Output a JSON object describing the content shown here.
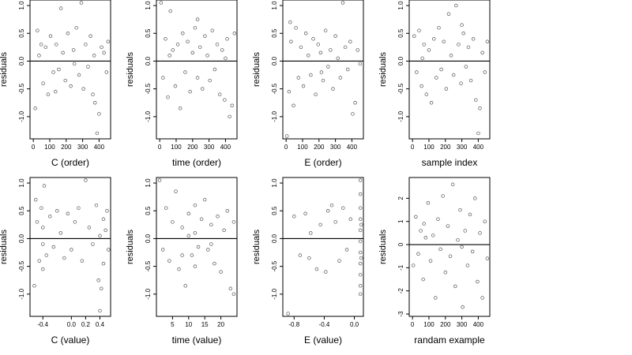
{
  "chart_data": [
    {
      "type": "scatter",
      "xlabel": "C (order)",
      "ylabel": "residuals",
      "xlim": [
        -20,
        470
      ],
      "ylim": [
        -1.4,
        1.1
      ],
      "xticks": [
        0,
        100,
        200,
        300,
        400
      ],
      "xticklabels": [
        "0",
        "100",
        "200",
        "300",
        "400"
      ],
      "yticks": [
        -1.0,
        -0.5,
        0.0,
        0.5,
        1.0
      ],
      "yticklabels": [
        "-1.0",
        "-0.5",
        "0.0",
        "0.5",
        "1.0"
      ],
      "hline": 0,
      "points": [
        [
          12,
          -0.85
        ],
        [
          25,
          0.55
        ],
        [
          48,
          0.3
        ],
        [
          60,
          -0.4
        ],
        [
          75,
          0.25
        ],
        [
          90,
          -0.6
        ],
        [
          105,
          0.45
        ],
        [
          122,
          -0.2
        ],
        [
          140,
          0.3
        ],
        [
          155,
          -0.15
        ],
        [
          168,
          0.95
        ],
        [
          180,
          0.15
        ],
        [
          195,
          -0.35
        ],
        [
          210,
          0.5
        ],
        [
          228,
          -0.45
        ],
        [
          245,
          0.2
        ],
        [
          262,
          0.6
        ],
        [
          278,
          -0.25
        ],
        [
          292,
          1.05
        ],
        [
          305,
          -0.5
        ],
        [
          318,
          0.3
        ],
        [
          333,
          -0.1
        ],
        [
          348,
          0.45
        ],
        [
          362,
          -0.6
        ],
        [
          375,
          -0.75
        ],
        [
          388,
          -1.3
        ],
        [
          400,
          -0.95
        ],
        [
          415,
          0.25
        ],
        [
          430,
          0.15
        ],
        [
          445,
          -0.2
        ],
        [
          455,
          0.35
        ],
        [
          35,
          0.1
        ],
        [
          135,
          -0.55
        ],
        [
          250,
          -0.05
        ],
        [
          370,
          0.1
        ]
      ]
    },
    {
      "type": "scatter",
      "xlabel": "time (order)",
      "ylabel": "residuals",
      "xlim": [
        -20,
        470
      ],
      "ylim": [
        -1.4,
        1.1
      ],
      "xticks": [
        0,
        100,
        200,
        300,
        400
      ],
      "xticklabels": [
        "0",
        "100",
        "200",
        "300",
        "400"
      ],
      "yticks": [
        -1.0,
        -0.5,
        0.0,
        0.5,
        1.0
      ],
      "yticklabels": [
        "-1.0",
        "-0.5",
        "0.0",
        "0.5",
        "1.0"
      ],
      "hline": 0,
      "points": [
        [
          8,
          1.05
        ],
        [
          20,
          -0.3
        ],
        [
          35,
          0.4
        ],
        [
          50,
          -0.65
        ],
        [
          65,
          0.9
        ],
        [
          80,
          0.2
        ],
        [
          95,
          -0.45
        ],
        [
          110,
          0.3
        ],
        [
          125,
          -0.85
        ],
        [
          140,
          0.5
        ],
        [
          155,
          -0.2
        ],
        [
          170,
          0.35
        ],
        [
          185,
          -0.55
        ],
        [
          200,
          0.15
        ],
        [
          215,
          0.6
        ],
        [
          230,
          -0.3
        ],
        [
          245,
          0.25
        ],
        [
          260,
          -0.5
        ],
        [
          275,
          0.45
        ],
        [
          290,
          0.1
        ],
        [
          305,
          -0.35
        ],
        [
          320,
          0.55
        ],
        [
          335,
          -0.15
        ],
        [
          350,
          0.3
        ],
        [
          365,
          -0.6
        ],
        [
          380,
          0.2
        ],
        [
          395,
          -0.7
        ],
        [
          410,
          0.4
        ],
        [
          425,
          -1.0
        ],
        [
          440,
          -0.8
        ],
        [
          455,
          0.5
        ],
        [
          60,
          0.1
        ],
        [
          230,
          0.75
        ],
        [
          400,
          0.05
        ]
      ]
    },
    {
      "type": "scatter",
      "xlabel": "E (order)",
      "ylabel": "residuals",
      "xlim": [
        -20,
        470
      ],
      "ylim": [
        -1.4,
        1.1
      ],
      "xticks": [
        0,
        100,
        200,
        300,
        400
      ],
      "xticklabels": [
        "0",
        "100",
        "200",
        "300",
        "400"
      ],
      "yticks": [
        -1.0,
        -0.5,
        0.0,
        0.5,
        1.0
      ],
      "yticklabels": [
        "-1.0",
        "-0.5",
        "0.0",
        "0.5",
        "1.0"
      ],
      "hline": 0,
      "points": [
        [
          5,
          -1.35
        ],
        [
          18,
          -0.55
        ],
        [
          30,
          0.35
        ],
        [
          45,
          -0.8
        ],
        [
          60,
          0.6
        ],
        [
          75,
          -0.3
        ],
        [
          90,
          0.25
        ],
        [
          105,
          -0.45
        ],
        [
          120,
          0.5
        ],
        [
          135,
          0.1
        ],
        [
          150,
          -0.25
        ],
        [
          165,
          0.4
        ],
        [
          180,
          -0.6
        ],
        [
          195,
          0.3
        ],
        [
          210,
          0.15
        ],
        [
          225,
          -0.35
        ],
        [
          240,
          0.55
        ],
        [
          255,
          -0.1
        ],
        [
          270,
          0.2
        ],
        [
          285,
          -0.5
        ],
        [
          300,
          0.45
        ],
        [
          315,
          0.05
        ],
        [
          330,
          -0.3
        ],
        [
          345,
          1.05
        ],
        [
          360,
          0.25
        ],
        [
          375,
          -0.15
        ],
        [
          390,
          0.35
        ],
        [
          405,
          -0.95
        ],
        [
          420,
          -0.75
        ],
        [
          435,
          0.2
        ],
        [
          450,
          -0.05
        ],
        [
          25,
          0.7
        ],
        [
          215,
          -0.2
        ]
      ]
    },
    {
      "type": "scatter",
      "xlabel": "sample index",
      "ylabel": "residuals",
      "xlim": [
        -20,
        470
      ],
      "ylim": [
        -1.4,
        1.1
      ],
      "xticks": [
        0,
        100,
        200,
        300,
        400
      ],
      "xticklabels": [
        "0",
        "100",
        "200",
        "300",
        "400"
      ],
      "yticks": [
        -1.0,
        -0.5,
        0.0,
        0.5,
        1.0
      ],
      "yticklabels": [
        "-1.0",
        "-0.5",
        "0.0",
        "0.5",
        "1.0"
      ],
      "hline": 0,
      "points": [
        [
          10,
          0.45
        ],
        [
          25,
          -0.2
        ],
        [
          40,
          0.55
        ],
        [
          55,
          -0.45
        ],
        [
          70,
          0.3
        ],
        [
          85,
          -0.6
        ],
        [
          100,
          0.2
        ],
        [
          115,
          -0.75
        ],
        [
          130,
          0.4
        ],
        [
          145,
          -0.3
        ],
        [
          160,
          0.6
        ],
        [
          175,
          -0.15
        ],
        [
          190,
          0.35
        ],
        [
          205,
          -0.5
        ],
        [
          220,
          0.85
        ],
        [
          235,
          0.1
        ],
        [
          250,
          -0.25
        ],
        [
          265,
          1.0
        ],
        [
          280,
          0.3
        ],
        [
          295,
          -0.4
        ],
        [
          310,
          0.5
        ],
        [
          325,
          -0.1
        ],
        [
          340,
          0.25
        ],
        [
          355,
          -0.35
        ],
        [
          370,
          0.4
        ],
        [
          385,
          -0.7
        ],
        [
          400,
          -1.3
        ],
        [
          410,
          -0.85
        ],
        [
          425,
          0.15
        ],
        [
          440,
          -0.2
        ],
        [
          455,
          0.35
        ],
        [
          60,
          0.05
        ],
        [
          300,
          0.65
        ]
      ]
    },
    {
      "type": "scatter",
      "xlabel": "C (value)",
      "ylabel": "residuals",
      "xlim": [
        -0.58,
        0.55
      ],
      "ylim": [
        -1.4,
        1.1
      ],
      "xticks": [
        -0.4,
        0.0,
        0.2,
        0.4
      ],
      "xticklabels": [
        "-0.4",
        "0.0",
        "0.2",
        "0.4"
      ],
      "yticks": [
        -1.0,
        -0.5,
        0.0,
        0.5,
        1.0
      ],
      "yticklabels": [
        "-1.0",
        "-0.5",
        "0.0",
        "0.5",
        "1.0"
      ],
      "hline": 0,
      "points": [
        [
          -0.52,
          -0.85
        ],
        [
          -0.5,
          0.7
        ],
        [
          -0.48,
          0.3
        ],
        [
          -0.45,
          -0.4
        ],
        [
          -0.42,
          0.55
        ],
        [
          -0.4,
          -0.55
        ],
        [
          -0.4,
          0.2
        ],
        [
          -0.38,
          0.95
        ],
        [
          -0.35,
          -0.3
        ],
        [
          -0.3,
          0.4
        ],
        [
          -0.25,
          -0.15
        ],
        [
          -0.2,
          0.5
        ],
        [
          -0.15,
          0.1
        ],
        [
          -0.1,
          -0.35
        ],
        [
          -0.05,
          0.45
        ],
        [
          0.0,
          -0.2
        ],
        [
          0.05,
          0.3
        ],
        [
          0.1,
          0.55
        ],
        [
          0.15,
          -0.4
        ],
        [
          0.2,
          1.05
        ],
        [
          0.25,
          0.2
        ],
        [
          0.3,
          -0.1
        ],
        [
          0.35,
          0.6
        ],
        [
          0.38,
          -0.75
        ],
        [
          0.4,
          -1.3
        ],
        [
          0.42,
          -0.9
        ],
        [
          0.45,
          0.35
        ],
        [
          0.48,
          0.15
        ],
        [
          0.5,
          0.5
        ],
        [
          0.52,
          -0.2
        ],
        [
          -0.4,
          -0.1
        ],
        [
          0.4,
          0.05
        ],
        [
          0.45,
          -0.45
        ]
      ]
    },
    {
      "type": "scatter",
      "xlabel": "time (value)",
      "ylabel": "residuals",
      "xlim": [
        0,
        25
      ],
      "ylim": [
        -1.4,
        1.1
      ],
      "xticks": [
        5,
        10,
        15,
        20
      ],
      "xticklabels": [
        "5",
        "10",
        "15",
        "20"
      ],
      "yticks": [
        -1.0,
        -0.5,
        0.0,
        0.5,
        1.0
      ],
      "yticklabels": [
        "-1.0",
        "-0.5",
        "0.0",
        "0.5",
        "1.0"
      ],
      "hline": 0,
      "points": [
        [
          1,
          1.05
        ],
        [
          2,
          -0.2
        ],
        [
          3,
          0.55
        ],
        [
          4,
          -0.4
        ],
        [
          5,
          0.3
        ],
        [
          6,
          0.85
        ],
        [
          7,
          -0.55
        ],
        [
          8,
          0.2
        ],
        [
          9,
          -0.85
        ],
        [
          10,
          0.45
        ],
        [
          11,
          -0.3
        ],
        [
          12,
          0.1
        ],
        [
          12,
          -0.5
        ],
        [
          12,
          0.6
        ],
        [
          13,
          -0.15
        ],
        [
          14,
          0.35
        ],
        [
          15,
          0.7
        ],
        [
          16,
          -0.2
        ],
        [
          17,
          0.25
        ],
        [
          18,
          -0.45
        ],
        [
          19,
          0.4
        ],
        [
          20,
          -0.6
        ],
        [
          21,
          0.15
        ],
        [
          22,
          0.5
        ],
        [
          23,
          -0.9
        ],
        [
          24,
          -1.0
        ],
        [
          24,
          0.3
        ],
        [
          10,
          0.05
        ],
        [
          17,
          -0.1
        ],
        [
          8,
          -0.3
        ]
      ]
    },
    {
      "type": "scatter",
      "xlabel": "E (value)",
      "ylabel": "residuals",
      "xlim": [
        -0.95,
        0.12
      ],
      "ylim": [
        -1.4,
        1.1
      ],
      "xticks": [
        -0.8,
        -0.4,
        0.0
      ],
      "xticklabels": [
        "-0.8",
        "-0.4",
        "0.0"
      ],
      "yticks": [
        -1.0,
        -0.5,
        0.0,
        0.5,
        1.0
      ],
      "yticklabels": [
        "-1.0",
        "-0.5",
        "0.0",
        "0.5",
        "1.0"
      ],
      "hline": 0,
      "points": [
        [
          -0.88,
          -1.35
        ],
        [
          -0.8,
          0.4
        ],
        [
          -0.72,
          -0.3
        ],
        [
          -0.65,
          0.45
        ],
        [
          -0.58,
          0.1
        ],
        [
          -0.5,
          -0.55
        ],
        [
          -0.45,
          0.25
        ],
        [
          -0.38,
          -0.6
        ],
        [
          -0.3,
          0.6
        ],
        [
          -0.25,
          0.3
        ],
        [
          -0.2,
          -0.4
        ],
        [
          -0.15,
          0.55
        ],
        [
          -0.1,
          -0.2
        ],
        [
          -0.05,
          0.35
        ],
        [
          0.08,
          1.05
        ],
        [
          0.08,
          0.8
        ],
        [
          0.08,
          0.55
        ],
        [
          0.08,
          0.35
        ],
        [
          0.08,
          0.15
        ],
        [
          0.08,
          -0.05
        ],
        [
          0.08,
          -0.25
        ],
        [
          0.08,
          -0.45
        ],
        [
          0.08,
          -0.65
        ],
        [
          0.08,
          -0.85
        ],
        [
          0.08,
          -1.0
        ],
        [
          0.09,
          0.25
        ],
        [
          0.09,
          -0.35
        ],
        [
          -0.6,
          -0.35
        ],
        [
          -0.35,
          0.5
        ]
      ]
    },
    {
      "type": "scatter",
      "xlabel": "randam example",
      "ylabel": "residuals",
      "xlim": [
        -20,
        470
      ],
      "ylim": [
        -3.1,
        2.9
      ],
      "xticks": [
        0,
        100,
        200,
        300,
        400
      ],
      "xticklabels": [
        "0",
        "100",
        "200",
        "300",
        "400"
      ],
      "yticks": [
        -3,
        -2,
        -1,
        0,
        1,
        2
      ],
      "yticklabels": [
        "-3",
        "-2",
        "-1",
        "0",
        "1",
        "2"
      ],
      "hline": 0,
      "points": [
        [
          5,
          -0.9
        ],
        [
          20,
          1.2
        ],
        [
          35,
          -0.4
        ],
        [
          50,
          0.6
        ],
        [
          65,
          -1.5
        ],
        [
          80,
          0.3
        ],
        [
          95,
          1.8
        ],
        [
          110,
          -0.7
        ],
        [
          125,
          0.4
        ],
        [
          140,
          -2.3
        ],
        [
          155,
          1.1
        ],
        [
          170,
          -0.2
        ],
        [
          185,
          2.1
        ],
        [
          200,
          -1.2
        ],
        [
          215,
          0.8
        ],
        [
          230,
          -0.5
        ],
        [
          245,
          2.6
        ],
        [
          260,
          -1.8
        ],
        [
          275,
          0.2
        ],
        [
          290,
          1.5
        ],
        [
          305,
          -2.7
        ],
        [
          320,
          0.6
        ],
        [
          335,
          -0.9
        ],
        [
          350,
          1.3
        ],
        [
          365,
          -0.3
        ],
        [
          380,
          2.0
        ],
        [
          395,
          -1.6
        ],
        [
          410,
          0.5
        ],
        [
          425,
          -2.3
        ],
        [
          440,
          1.0
        ],
        [
          455,
          -0.6
        ],
        [
          70,
          0.9
        ],
        [
          300,
          -0.1
        ]
      ]
    }
  ]
}
